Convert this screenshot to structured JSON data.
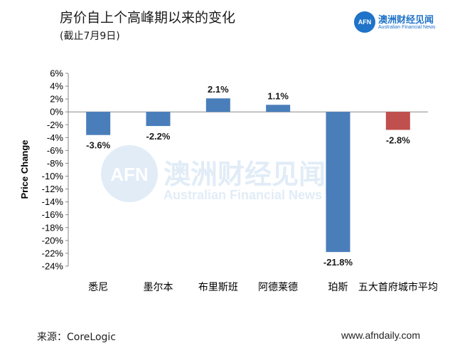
{
  "header": {
    "title": "房价自上个高峰期以来的变化",
    "subtitle": "(截止7月9日)"
  },
  "logo": {
    "mark": "AFN",
    "name_cn": "澳洲财经见闻",
    "name_en": "Australian Financial News"
  },
  "watermark": {
    "mark": "AFN",
    "name_cn": "澳洲财经见闻",
    "name_en": "Australian Financial News"
  },
  "footer": {
    "source": "来源：CoreLogic",
    "website": "www.afndaily.com"
  },
  "colors": {
    "bar_default": "#4a7ebb",
    "bar_highlight": "#c0504d",
    "accent": "#1f73c8"
  },
  "chart_data": {
    "type": "bar",
    "title": "",
    "xlabel": "",
    "ylabel": "Price Change",
    "categories": [
      "悉尼",
      "墨尔本",
      "布里斯班",
      "阿德莱德",
      "珀斯",
      "五大首府城市平均"
    ],
    "values": [
      -3.6,
      -2.2,
      2.1,
      1.1,
      -21.8,
      -2.8
    ],
    "data_labels": [
      "-3.6%",
      "-2.2%",
      "2.1%",
      "1.1%",
      "-21.8%",
      "-2.8%"
    ],
    "highlight_index": 5,
    "ylim": [
      -24,
      6
    ],
    "yticks": [
      6,
      4,
      2,
      0,
      -2,
      -4,
      -6,
      -8,
      -10,
      -12,
      -14,
      -16,
      -18,
      -20,
      -22,
      -24
    ],
    "ytick_labels": [
      "6%",
      "4%",
      "2%",
      "0%",
      "-2%",
      "-4%",
      "-6%",
      "-8%",
      "-10%",
      "-12%",
      "-14%",
      "-16%",
      "-18%",
      "-20%",
      "-22%",
      "-24%"
    ],
    "grid": false,
    "legend": "none"
  }
}
